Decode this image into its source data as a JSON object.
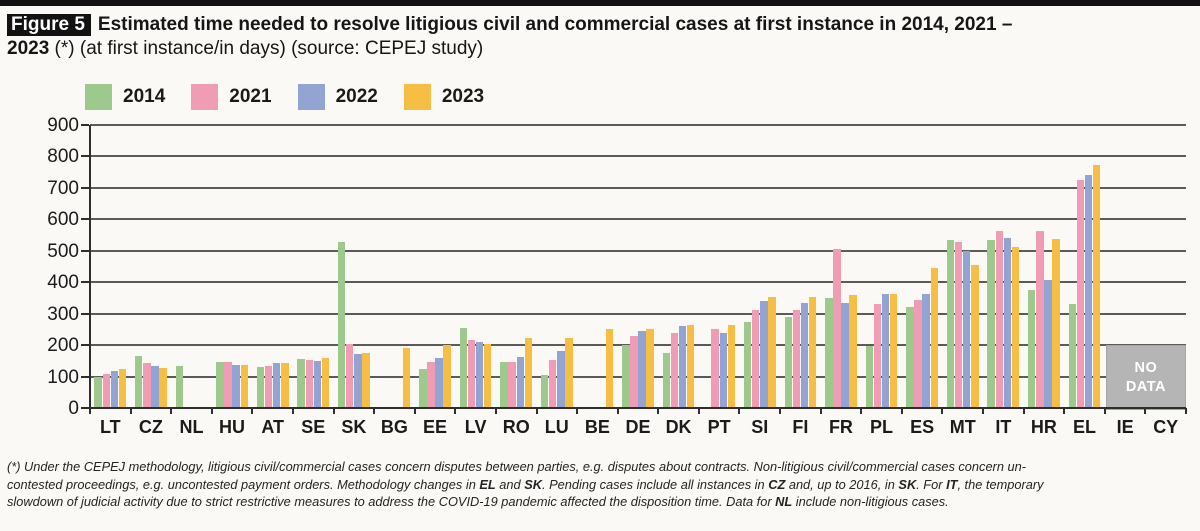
{
  "figure": {
    "label": "Figure 5",
    "title_line1": "Estimated time needed to resolve litigious civil and commercial cases at first instance in 2014, 2021 –",
    "title_line2_bold": "2023",
    "title_line2_rest": " (*) (at first instance/in days) (source: CEPEJ study)"
  },
  "chart_data": {
    "type": "bar",
    "title": "Estimated time needed to resolve litigious civil and commercial cases at first instance in 2014, 2021 – 2023 (at first instance/in days)",
    "source": "CEPEJ study",
    "xlabel": "",
    "ylabel": "",
    "ylim": [
      0,
      900
    ],
    "ytick_step": 100,
    "grid": true,
    "legend_position": "top",
    "categories": [
      "LT",
      "CZ",
      "NL",
      "HU",
      "AT",
      "SE",
      "SK",
      "BG",
      "EE",
      "LV",
      "RO",
      "LU",
      "BE",
      "DE",
      "DK",
      "PT",
      "SI",
      "FI",
      "FR",
      "PL",
      "ES",
      "MT",
      "IT",
      "HR",
      "EL",
      "IE",
      "CY"
    ],
    "series": [
      {
        "name": "2014",
        "color": "#9ec98d",
        "values": [
          100,
          165,
          133,
          145,
          131,
          156,
          527,
          null,
          123,
          255,
          145,
          106,
          null,
          200,
          176,
          null,
          275,
          288,
          350,
          198,
          320,
          535,
          533,
          375,
          330,
          null,
          null
        ]
      },
      {
        "name": "2021",
        "color": "#f09cb4",
        "values": [
          107,
          142,
          null,
          145,
          134,
          152,
          205,
          null,
          147,
          215,
          147,
          153,
          null,
          228,
          237,
          252,
          313,
          312,
          505,
          331,
          345,
          528,
          562,
          562,
          725,
          null,
          null
        ]
      },
      {
        "name": "2022",
        "color": "#91a4d2",
        "values": [
          118,
          133,
          null,
          138,
          142,
          151,
          171,
          null,
          158,
          210,
          161,
          182,
          null,
          244,
          262,
          240,
          340,
          333,
          333,
          364,
          364,
          500,
          541,
          406,
          742,
          null,
          null
        ]
      },
      {
        "name": "2023",
        "color": "#f6be44",
        "values": [
          124,
          126,
          null,
          138,
          142,
          158,
          175,
          190,
          200,
          202,
          222,
          223,
          250,
          250,
          263,
          265,
          353,
          353,
          358,
          362,
          445,
          455,
          512,
          538,
          772,
          null,
          null
        ]
      }
    ],
    "no_data": {
      "label": "NO DATA",
      "categories": [
        "IE",
        "CY"
      ],
      "top_value": 200
    }
  },
  "footnote": {
    "lines": [
      [
        {
          "t": "(*) Under the CEPEJ methodology, litigious civil/commercial cases concern disputes between parties, e.g. disputes about contracts. Non-litigious civil/commercial cases concern un-",
          "b": false
        }
      ],
      [
        {
          "t": "contested proceedings, e.g. uncontested payment orders. Methodology changes in ",
          "b": false
        },
        {
          "t": "EL",
          "b": true
        },
        {
          "t": " and ",
          "b": false
        },
        {
          "t": "SK",
          "b": true
        },
        {
          "t": ". Pending cases include all instances in ",
          "b": false
        },
        {
          "t": "CZ",
          "b": true
        },
        {
          "t": " and, up to 2016, in ",
          "b": false
        },
        {
          "t": "SK",
          "b": true
        },
        {
          "t": ". For ",
          "b": false
        },
        {
          "t": "IT",
          "b": true
        },
        {
          "t": ", the temporary",
          "b": false
        }
      ],
      [
        {
          "t": "slowdown of judicial activity due to strict restrictive measures to address the COVID-19 pandemic affected the disposition time. Data for ",
          "b": false
        },
        {
          "t": "NL",
          "b": true
        },
        {
          "t": " include non-litigious cases.",
          "b": false
        }
      ]
    ]
  }
}
